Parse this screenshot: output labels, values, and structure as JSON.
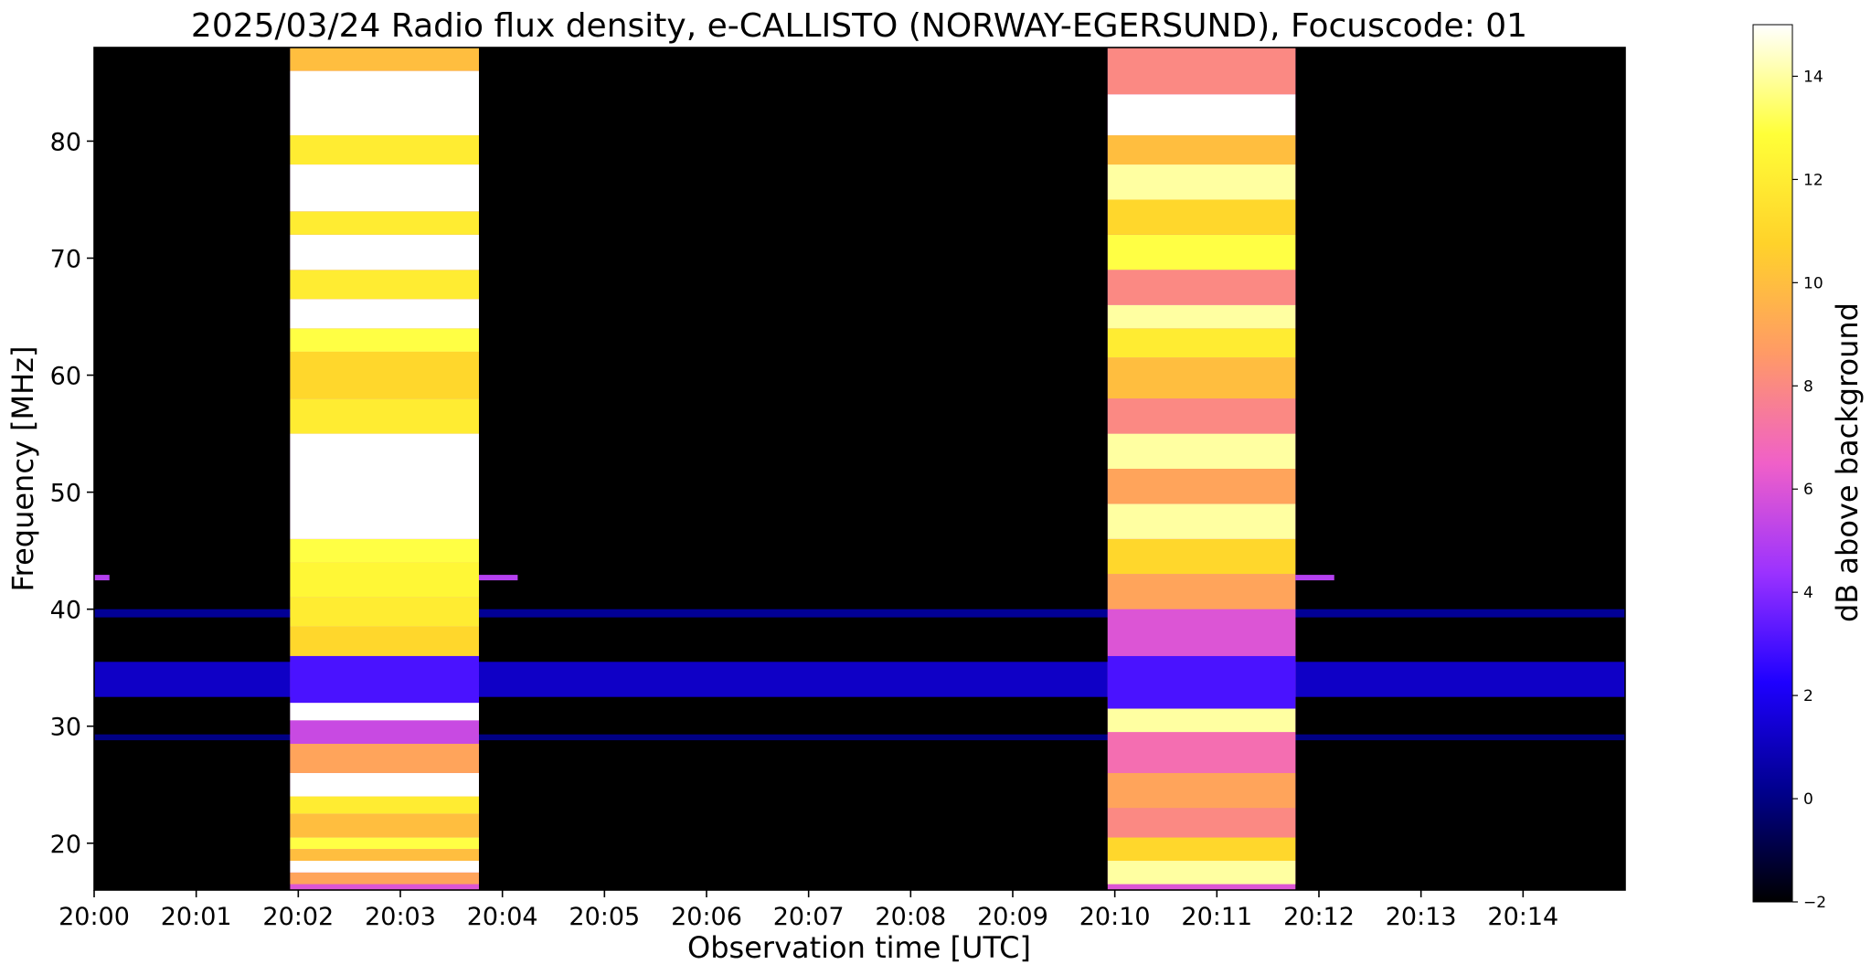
{
  "chart_data": {
    "type": "heatmap",
    "title": "2025/03/24  Radio flux density, e-CALLISTO (NORWAY-EGERSUND), Focuscode: 01",
    "xlabel": "Observation time [UTC]",
    "ylabel": "Frequency [MHz]",
    "colorbar_label": "dB above background",
    "colormap": "gnuplot2",
    "colormap_stops": [
      "#000000",
      "#00008c",
      "#1e00ff",
      "#9b32ff",
      "#f060c8",
      "#ff9a66",
      "#ffd22a",
      "#ffff38",
      "#ffffff"
    ],
    "x_range_minutes": [
      0,
      15
    ],
    "x_ticks": [
      {
        "value": 0,
        "label": "20:00"
      },
      {
        "value": 1,
        "label": "20:01"
      },
      {
        "value": 2,
        "label": "20:02"
      },
      {
        "value": 3,
        "label": "20:03"
      },
      {
        "value": 4,
        "label": "20:04"
      },
      {
        "value": 5,
        "label": "20:05"
      },
      {
        "value": 6,
        "label": "20:06"
      },
      {
        "value": 7,
        "label": "20:07"
      },
      {
        "value": 8,
        "label": "20:08"
      },
      {
        "value": 9,
        "label": "20:09"
      },
      {
        "value": 10,
        "label": "20:10"
      },
      {
        "value": 11,
        "label": "20:11"
      },
      {
        "value": 12,
        "label": "20:12"
      },
      {
        "value": 13,
        "label": "20:13"
      },
      {
        "value": 14,
        "label": "20:14"
      }
    ],
    "y_range_mhz": [
      16,
      88
    ],
    "y_ticks": [
      {
        "value": 20,
        "label": "20"
      },
      {
        "value": 30,
        "label": "30"
      },
      {
        "value": 40,
        "label": "40"
      },
      {
        "value": 50,
        "label": "50"
      },
      {
        "value": 60,
        "label": "60"
      },
      {
        "value": 70,
        "label": "70"
      },
      {
        "value": 80,
        "label": "80"
      }
    ],
    "colorbar_range_db": [
      -2,
      15
    ],
    "colorbar_ticks": [
      {
        "value": -2,
        "label": "−2"
      },
      {
        "value": 0,
        "label": "0"
      },
      {
        "value": 2,
        "label": "2"
      },
      {
        "value": 4,
        "label": "4"
      },
      {
        "value": 6,
        "label": "6"
      },
      {
        "value": 8,
        "label": "8"
      },
      {
        "value": 10,
        "label": "10"
      },
      {
        "value": 12,
        "label": "12"
      },
      {
        "value": 14,
        "label": "14"
      }
    ],
    "background_db": -1.5,
    "bursts": [
      {
        "t_start": 1.92,
        "t_end": 3.77,
        "bands": [
          [
            16.5,
            17.5,
            9
          ],
          [
            17.5,
            18.5,
            15
          ],
          [
            18.5,
            19.5,
            10
          ],
          [
            19.5,
            20.5,
            13
          ],
          [
            20.5,
            22.5,
            10
          ],
          [
            22.5,
            24.0,
            12
          ],
          [
            24.0,
            26.0,
            15
          ],
          [
            26.0,
            28.5,
            9
          ],
          [
            28.5,
            30.5,
            5.5
          ],
          [
            30.5,
            32.0,
            15
          ],
          [
            32.0,
            36.0,
            3
          ],
          [
            36.0,
            38.5,
            11
          ],
          [
            38.5,
            41.0,
            12
          ],
          [
            41.0,
            44.0,
            12.5
          ],
          [
            44.0,
            46.0,
            13
          ],
          [
            46.0,
            52.0,
            15
          ],
          [
            52.0,
            55.0,
            15
          ],
          [
            55.0,
            58.0,
            12
          ],
          [
            58.0,
            62.0,
            11
          ],
          [
            62.0,
            64.0,
            13
          ],
          [
            64.0,
            66.5,
            15
          ],
          [
            66.5,
            69.0,
            12
          ],
          [
            69.0,
            72.0,
            15
          ],
          [
            72.0,
            74.0,
            12
          ],
          [
            74.0,
            78.0,
            15
          ],
          [
            78.0,
            80.5,
            12
          ],
          [
            80.5,
            86.0,
            15
          ],
          [
            86.0,
            88.0,
            10
          ]
        ]
      },
      {
        "t_start": 9.93,
        "t_end": 11.77,
        "bands": [
          [
            16.5,
            18.5,
            14
          ],
          [
            18.5,
            20.5,
            11
          ],
          [
            20.5,
            23.0,
            8
          ],
          [
            23.0,
            26.0,
            9
          ],
          [
            26.0,
            29.5,
            7
          ],
          [
            29.5,
            31.5,
            14
          ],
          [
            31.5,
            36.0,
            3
          ],
          [
            36.0,
            40.0,
            6
          ],
          [
            40.0,
            43.0,
            9
          ],
          [
            43.0,
            46.0,
            11
          ],
          [
            46.0,
            49.0,
            14
          ],
          [
            49.0,
            52.0,
            9
          ],
          [
            52.0,
            55.0,
            14
          ],
          [
            55.0,
            58.0,
            8
          ],
          [
            58.0,
            61.5,
            10
          ],
          [
            61.5,
            64.0,
            12
          ],
          [
            64.0,
            66.0,
            14
          ],
          [
            66.0,
            69.0,
            8
          ],
          [
            69.0,
            72.0,
            13
          ],
          [
            72.0,
            75.0,
            11
          ],
          [
            75.0,
            78.0,
            14
          ],
          [
            78.0,
            80.5,
            10
          ],
          [
            80.5,
            84.0,
            15
          ],
          [
            84.0,
            88.0,
            8
          ]
        ]
      }
    ],
    "persistent_bands": [
      {
        "f_low": 32.5,
        "f_high": 35.5,
        "db": 1.2
      },
      {
        "f_low": 39.3,
        "f_high": 40.0,
        "db": 0.3
      },
      {
        "f_low": 28.8,
        "f_high": 29.3,
        "db": 0.0
      }
    ],
    "narrow_lines": [
      {
        "freq": 42.7,
        "t_start": 0.0,
        "t_end": 0.15,
        "db": 5
      },
      {
        "freq": 42.7,
        "t_start": 3.77,
        "t_end": 4.15,
        "db": 5
      },
      {
        "freq": 42.7,
        "t_start": 11.77,
        "t_end": 12.15,
        "db": 5
      }
    ]
  }
}
